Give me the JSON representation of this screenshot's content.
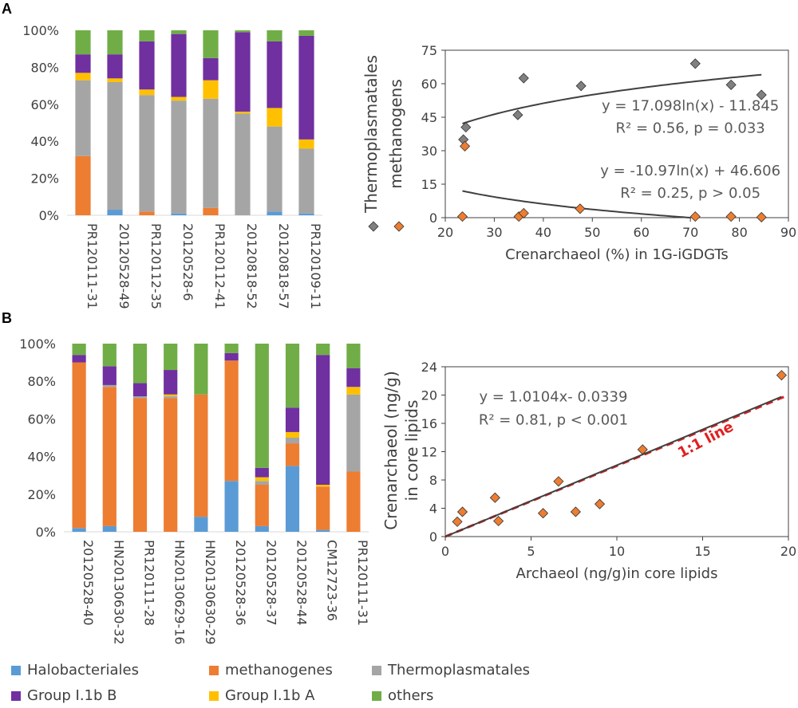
{
  "panels": {
    "a": "A",
    "b": "B"
  },
  "colors": {
    "Halobacteriales": "#5b9bd5",
    "methanogenes": "#ed7d31",
    "Thermoplasmatales": "#a5a5a5",
    "Group I.1b B": "#7030a0",
    "Group I.1b A": "#ffc000",
    "others": "#70ad47",
    "gray_marker": "#808080",
    "orange_marker": "#ed7d31",
    "fit_line": "#404040",
    "one_to_one": "#e02020"
  },
  "legend": {
    "items": [
      "Halobacteriales",
      "methanogenes",
      "Thermoplasmatales",
      "Group I.1b B",
      "Group I.1b A",
      "others"
    ]
  },
  "chart_data": [
    {
      "id": "A-bar",
      "type": "bar",
      "stacked": true,
      "categories": [
        "PR120111-31",
        "20120528-49",
        "PR120112-35",
        "20120528-6",
        "PR120112-41",
        "20120818-52",
        "20120818-57",
        "PR120109-11"
      ],
      "series": [
        {
          "name": "Halobacteriales",
          "values": [
            0,
            3,
            0,
            1,
            0,
            0,
            2,
            1
          ]
        },
        {
          "name": "methanogenes",
          "values": [
            32,
            0,
            2,
            0,
            4,
            0,
            0,
            0
          ]
        },
        {
          "name": "Thermoplasmatales",
          "values": [
            41,
            69,
            63,
            61,
            59,
            55,
            46,
            35
          ]
        },
        {
          "name": "Group I.1b A",
          "values": [
            4,
            2,
            3,
            2,
            10,
            1,
            10,
            5
          ]
        },
        {
          "name": "Group I.1b B",
          "values": [
            10,
            13,
            26,
            34,
            12,
            43,
            36,
            56
          ]
        },
        {
          "name": "others",
          "values": [
            13,
            13,
            6,
            2,
            15,
            1,
            6,
            3
          ]
        }
      ],
      "ylim": [
        0,
        100
      ],
      "yticks": [
        "0%",
        "20%",
        "40%",
        "60%",
        "80%",
        "100%"
      ]
    },
    {
      "id": "A-scatter",
      "type": "scatter",
      "xlabel": "Crenarchaeol (%) in 1G-iGDGTs",
      "ylabel_lines": [
        "Thermoplasmatales",
        "methanogens"
      ],
      "xlim": [
        20,
        90
      ],
      "ylim": [
        0,
        75
      ],
      "xticks": [
        20,
        30,
        40,
        50,
        60,
        70,
        80,
        90
      ],
      "yticks": [
        0,
        15,
        30,
        45,
        60,
        75
      ],
      "series": [
        {
          "name": "Thermoplasmatales",
          "marker_color": "gray_marker",
          "points": [
            [
              23.7,
              35
            ],
            [
              24.2,
              40.5
            ],
            [
              34.8,
              46
            ],
            [
              36,
              62.5
            ],
            [
              47.7,
              59
            ],
            [
              71,
              69
            ],
            [
              78.3,
              59.5
            ],
            [
              84.5,
              55
            ]
          ]
        },
        {
          "name": "methanogens",
          "marker_color": "orange_marker",
          "points": [
            [
              23.5,
              0.5
            ],
            [
              24,
              32
            ],
            [
              35,
              0.5
            ],
            [
              36,
              2
            ],
            [
              47.5,
              4
            ],
            [
              71,
              0.5
            ],
            [
              78.3,
              0.5
            ],
            [
              84.5,
              0.2
            ]
          ]
        }
      ],
      "fits": [
        {
          "type": "log",
          "a": 17.098,
          "b": -11.845,
          "x_range": [
            23.5,
            84.5
          ]
        },
        {
          "type": "log",
          "a": -10.97,
          "b": 46.606,
          "x_range": [
            23.5,
            70
          ]
        }
      ],
      "annotations": [
        {
          "lines": [
            "y = 17.098ln(x) - 11.845",
            "R² = 0.56, p = 0.033"
          ],
          "at": [
            70,
            48
          ]
        },
        {
          "lines": [
            "y = -10.97ln(x) + 46.606",
            "R² = 0.25, p > 0.05"
          ],
          "at": [
            70,
            19
          ]
        }
      ]
    },
    {
      "id": "B-bar",
      "type": "bar",
      "stacked": true,
      "categories": [
        "20120528-40",
        "HN20130630-32",
        "PR120111-28",
        "HN20130629-16",
        "HN20130630-29",
        "20120528-36",
        "20120528-37",
        "20120528-44",
        "CM12723-36",
        "PR120111-31"
      ],
      "series": [
        {
          "name": "Halobacteriales",
          "values": [
            2,
            3,
            0,
            0,
            8,
            27,
            3,
            35,
            1,
            0
          ]
        },
        {
          "name": "methanogenes",
          "values": [
            88,
            74,
            71,
            71,
            65,
            64,
            22,
            12,
            23,
            32
          ]
        },
        {
          "name": "Thermoplasmatales",
          "values": [
            0,
            1,
            1,
            1,
            0,
            0,
            2,
            3,
            0,
            41
          ]
        },
        {
          "name": "Group I.1b A",
          "values": [
            0,
            0,
            0,
            1,
            0,
            0,
            2,
            3,
            1,
            4
          ]
        },
        {
          "name": "Group I.1b B",
          "values": [
            4,
            10,
            7,
            13,
            0,
            4,
            5,
            13,
            69,
            10
          ]
        },
        {
          "name": "others",
          "values": [
            6,
            12,
            21,
            14,
            27,
            5,
            66,
            34,
            6,
            13
          ]
        }
      ],
      "ylim": [
        0,
        100
      ],
      "yticks": [
        "0%",
        "20%",
        "40%",
        "60%",
        "80%",
        "100%"
      ]
    },
    {
      "id": "B-scatter",
      "type": "scatter",
      "xlabel": "Archaeol (ng/g)in core lipids",
      "ylabel_lines": [
        "Crenarchaeol (ng/g)",
        "in core lipids"
      ],
      "xlim": [
        0,
        20
      ],
      "ylim": [
        0,
        24
      ],
      "xticks": [
        0,
        5,
        10,
        15,
        20
      ],
      "yticks": [
        0,
        4,
        8,
        12,
        16,
        20,
        24
      ],
      "series": [
        {
          "name": "samples",
          "marker_color": "orange_marker",
          "points": [
            [
              0.7,
              2.1
            ],
            [
              1,
              3.5
            ],
            [
              2.9,
              5.5
            ],
            [
              3.1,
              2.2
            ],
            [
              5.7,
              3.3
            ],
            [
              6.6,
              7.8
            ],
            [
              7.6,
              3.5
            ],
            [
              9,
              4.6
            ],
            [
              11.5,
              12.3
            ],
            [
              19.6,
              22.8
            ]
          ]
        }
      ],
      "fit": {
        "type": "linear",
        "slope": 1.0104,
        "intercept": -0.0339,
        "x_range": [
          0,
          19.6
        ]
      },
      "one_to_one_label": "1:1 line",
      "annotations": [
        {
          "lines": [
            "y = 1.0104x- 0.0339",
            "R² = 0.81, p < 0.001"
          ],
          "at": [
            6.3,
            19.1
          ]
        }
      ]
    }
  ]
}
